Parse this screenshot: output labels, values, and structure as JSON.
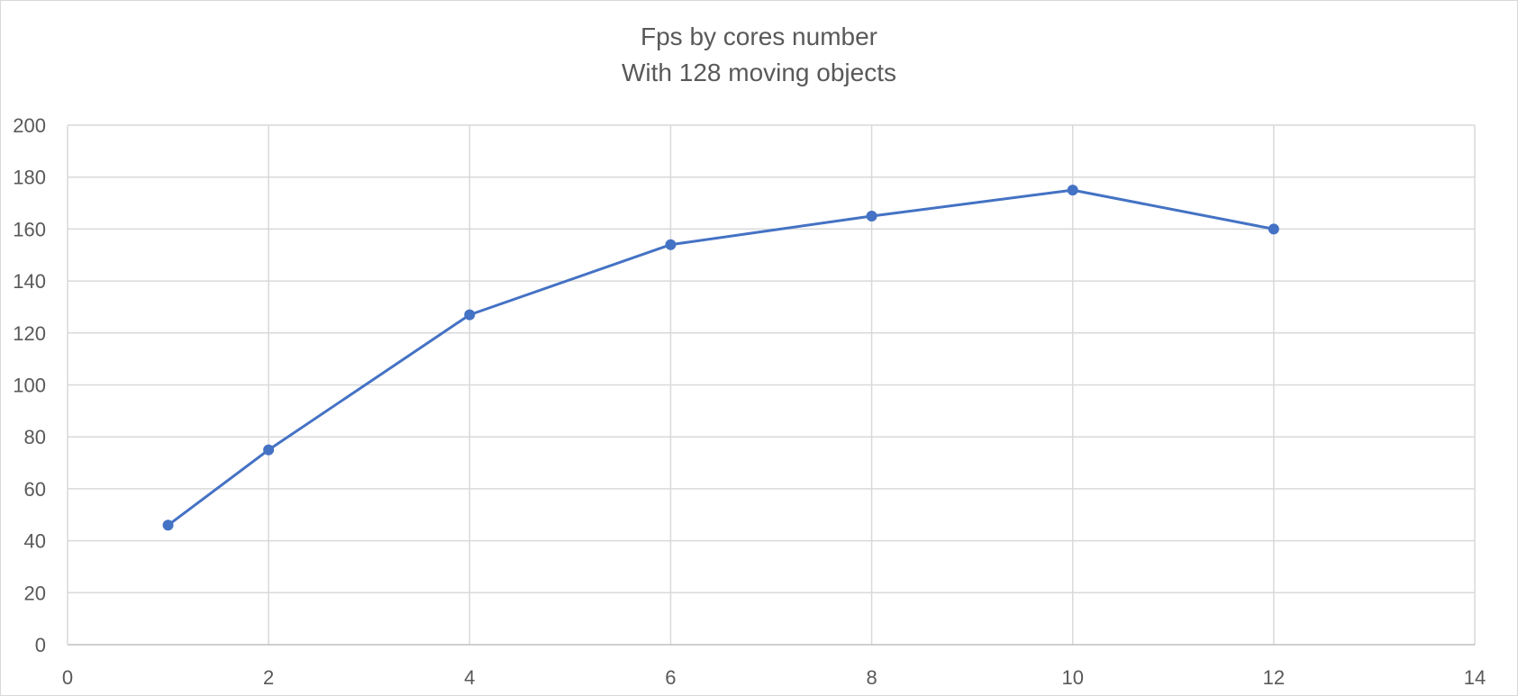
{
  "chart_data": {
    "type": "line",
    "title": "Fps by cores number",
    "subtitle": "With 128 moving objects",
    "xlabel": "",
    "ylabel": "",
    "xlim": [
      0,
      14
    ],
    "ylim": [
      0,
      200
    ],
    "x_ticks": [
      "0",
      "2",
      "4",
      "6",
      "8",
      "10",
      "12",
      "14"
    ],
    "y_ticks": [
      "0",
      "20",
      "40",
      "60",
      "80",
      "100",
      "120",
      "140",
      "160",
      "180",
      "200"
    ],
    "grid": true,
    "legend": "none",
    "series": [
      {
        "color": "#4472c4",
        "x": [
          1,
          2,
          4,
          6,
          8,
          10,
          12
        ],
        "y": [
          46,
          75,
          127,
          154,
          165,
          175,
          160
        ]
      }
    ]
  }
}
